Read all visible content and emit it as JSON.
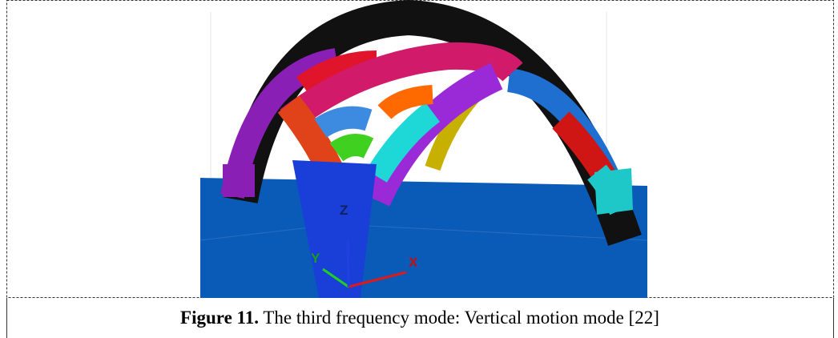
{
  "figure": {
    "axis_labels": {
      "z": "Z",
      "y": "Y",
      "x": "X"
    },
    "caption": {
      "label": "Figure 11.",
      "text": "The third frequency mode: Vertical motion mode [22]"
    }
  }
}
